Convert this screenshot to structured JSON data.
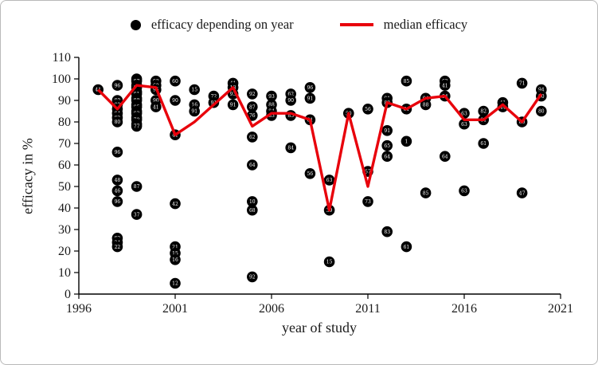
{
  "legend": {
    "scatter_label": "efficacy depending on year",
    "line_label": "median efficacy"
  },
  "axes": {
    "x_label": "year of study",
    "y_label": "efficacy in %",
    "x_ticks": [
      1996,
      2001,
      2006,
      2011,
      2016,
      2021
    ],
    "y_ticks": [
      0,
      10,
      20,
      30,
      40,
      50,
      60,
      70,
      80,
      90,
      100,
      110
    ]
  },
  "chart_data": {
    "type": "scatter",
    "title": "",
    "xlabel": "year of study",
    "ylabel": "efficacy in %",
    "xlim": [
      1996,
      2021
    ],
    "ylim": [
      0,
      110
    ],
    "grid": false,
    "legend_position": "top",
    "colors": {
      "scatter": "#000000",
      "line": "#e8000b"
    },
    "series": [
      {
        "name": "efficacy depending on year",
        "type": "scatter",
        "points": [
          [
            1997,
            95,
            "41"
          ],
          [
            1998,
            97,
            "96"
          ],
          [
            1998,
            90,
            "90"
          ],
          [
            1998,
            88,
            "88"
          ],
          [
            1998,
            86,
            "86"
          ],
          [
            1998,
            84,
            "84"
          ],
          [
            1998,
            82,
            "82"
          ],
          [
            1998,
            80,
            "80"
          ],
          [
            1998,
            66,
            "96"
          ],
          [
            1998,
            53,
            "48"
          ],
          [
            1998,
            48,
            "46"
          ],
          [
            1998,
            43,
            "96"
          ],
          [
            1998,
            26,
            "92"
          ],
          [
            1998,
            24,
            "24"
          ],
          [
            1998,
            22,
            "22"
          ],
          [
            1999,
            100,
            "98"
          ],
          [
            1999,
            99,
            "97"
          ],
          [
            1999,
            97,
            "95"
          ],
          [
            1999,
            96,
            "94"
          ],
          [
            1999,
            94,
            "92"
          ],
          [
            1999,
            93,
            "91"
          ],
          [
            1999,
            91,
            "89"
          ],
          [
            1999,
            90,
            "88"
          ],
          [
            1999,
            88,
            "86"
          ],
          [
            1999,
            87,
            "85"
          ],
          [
            1999,
            85,
            "83"
          ],
          [
            1999,
            84,
            "82"
          ],
          [
            1999,
            82,
            "80"
          ],
          [
            1999,
            81,
            "79"
          ],
          [
            1999,
            79,
            "78"
          ],
          [
            1999,
            78,
            "77"
          ],
          [
            1999,
            50,
            "87"
          ],
          [
            1999,
            37,
            "37"
          ],
          [
            2000,
            99,
            "99"
          ],
          [
            2000,
            97,
            "60"
          ],
          [
            2000,
            95,
            "95"
          ],
          [
            2000,
            90,
            "90"
          ],
          [
            2000,
            87,
            "41"
          ],
          [
            2001,
            99,
            "60"
          ],
          [
            2001,
            90,
            "90"
          ],
          [
            2001,
            74,
            "41"
          ],
          [
            2001,
            42,
            "42"
          ],
          [
            2001,
            22,
            "21"
          ],
          [
            2001,
            19,
            "15"
          ],
          [
            2001,
            16,
            "16"
          ],
          [
            2001,
            5,
            "12"
          ],
          [
            2002,
            95,
            "15"
          ],
          [
            2002,
            88,
            "16"
          ],
          [
            2002,
            85,
            "91"
          ],
          [
            2003,
            92,
            "72"
          ],
          [
            2003,
            89,
            "91"
          ],
          [
            2004,
            98,
            "41"
          ],
          [
            2004,
            96,
            "13"
          ],
          [
            2004,
            93,
            "93"
          ],
          [
            2004,
            88,
            "91"
          ],
          [
            2005,
            93,
            "92"
          ],
          [
            2005,
            87,
            "87"
          ],
          [
            2005,
            83,
            "76"
          ],
          [
            2005,
            73,
            "62"
          ],
          [
            2005,
            60,
            "64"
          ],
          [
            2005,
            43,
            "10"
          ],
          [
            2005,
            39,
            "68"
          ],
          [
            2005,
            8,
            "92"
          ],
          [
            2006,
            92,
            "93"
          ],
          [
            2006,
            88,
            "88"
          ],
          [
            2006,
            85,
            "84"
          ],
          [
            2006,
            83,
            "83"
          ],
          [
            2007,
            93,
            "62"
          ],
          [
            2007,
            90,
            "90"
          ],
          [
            2007,
            83,
            "83"
          ],
          [
            2007,
            68,
            "84"
          ],
          [
            2008,
            96,
            "96"
          ],
          [
            2008,
            91,
            "91"
          ],
          [
            2008,
            81,
            "81"
          ],
          [
            2008,
            56,
            "56"
          ],
          [
            2009,
            53,
            "63"
          ],
          [
            2009,
            39,
            "39"
          ],
          [
            2009,
            15,
            "15"
          ],
          [
            2010,
            84,
            "50"
          ],
          [
            2011,
            86,
            "56"
          ],
          [
            2011,
            57,
            "57"
          ],
          [
            2011,
            43,
            "73"
          ],
          [
            2012,
            91,
            "91"
          ],
          [
            2012,
            89,
            "83"
          ],
          [
            2012,
            76,
            "91"
          ],
          [
            2012,
            69,
            "65"
          ],
          [
            2012,
            64,
            "64"
          ],
          [
            2012,
            29,
            "83"
          ],
          [
            2013,
            99,
            "85"
          ],
          [
            2013,
            86,
            "61"
          ],
          [
            2013,
            71,
            "1"
          ],
          [
            2013,
            22,
            "61"
          ],
          [
            2014,
            91,
            "94"
          ],
          [
            2014,
            88,
            "88"
          ],
          [
            2014,
            47,
            "85"
          ],
          [
            2015,
            99,
            "62"
          ],
          [
            2015,
            97,
            "41"
          ],
          [
            2015,
            92,
            "94"
          ],
          [
            2015,
            64,
            "64"
          ],
          [
            2016,
            84,
            "63"
          ],
          [
            2016,
            79,
            "63"
          ],
          [
            2016,
            48,
            "63"
          ],
          [
            2017,
            85,
            "82"
          ],
          [
            2017,
            81,
            "81"
          ],
          [
            2017,
            70,
            "61"
          ],
          [
            2018,
            89,
            "41"
          ],
          [
            2018,
            87,
            "44"
          ],
          [
            2019,
            98,
            "71"
          ],
          [
            2019,
            80,
            "80"
          ],
          [
            2019,
            47,
            "47"
          ],
          [
            2020,
            95,
            "94"
          ],
          [
            2020,
            92,
            "90"
          ],
          [
            2020,
            85,
            "80"
          ]
        ]
      },
      {
        "name": "median efficacy",
        "type": "line",
        "x": [
          1997,
          1998,
          1999,
          2000,
          2001,
          2002,
          2003,
          2004,
          2005,
          2006,
          2007,
          2008,
          2009,
          2010,
          2011,
          2012,
          2013,
          2014,
          2015,
          2016,
          2017,
          2018,
          2019,
          2020
        ],
        "y": [
          95,
          86,
          97,
          96,
          74,
          80,
          88,
          96,
          78,
          84,
          84,
          81,
          39,
          84,
          50,
          89,
          86,
          91,
          92,
          81,
          81,
          88,
          80,
          93
        ]
      }
    ]
  }
}
